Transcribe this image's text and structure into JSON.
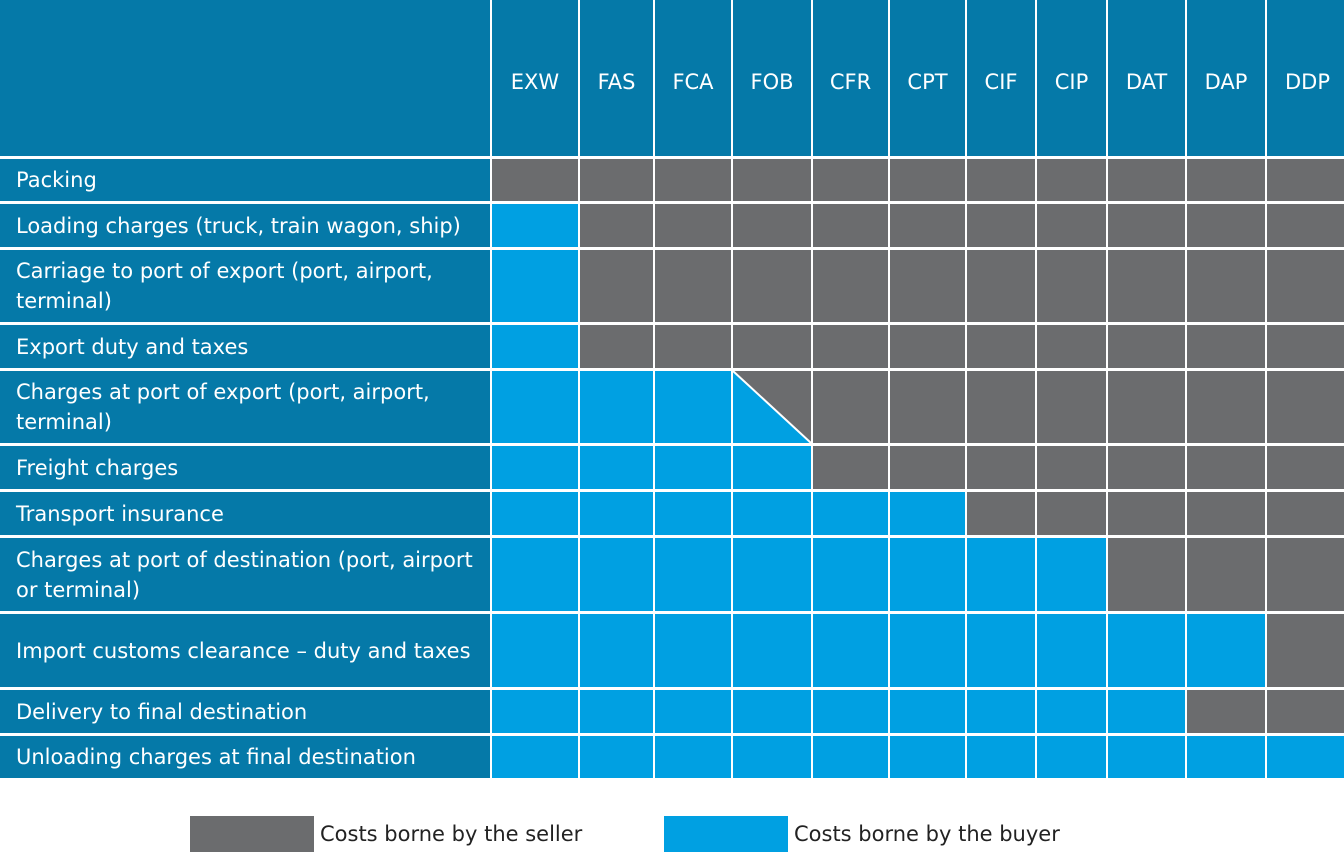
{
  "columns": [
    "EXW",
    "FAS",
    "FCA",
    "FOB",
    "CFR",
    "CPT",
    "CIF",
    "CIP",
    "DAT",
    "DAP",
    "DDP"
  ],
  "rows": [
    {
      "label": "Packing",
      "cells": [
        "seller",
        "seller",
        "seller",
        "seller",
        "seller",
        "seller",
        "seller",
        "seller",
        "seller",
        "seller",
        "seller"
      ]
    },
    {
      "label": "Loading charges (truck, train wagon, ship)",
      "cells": [
        "buyer",
        "seller",
        "seller",
        "seller",
        "seller",
        "seller",
        "seller",
        "seller",
        "seller",
        "seller",
        "seller"
      ]
    },
    {
      "label": "Carriage to port of export (port, airport, terminal)",
      "cells": [
        "buyer",
        "seller",
        "seller",
        "seller",
        "seller",
        "seller",
        "seller",
        "seller",
        "seller",
        "seller",
        "seller"
      ]
    },
    {
      "label": "Export duty and taxes",
      "cells": [
        "buyer",
        "seller",
        "seller",
        "seller",
        "seller",
        "seller",
        "seller",
        "seller",
        "seller",
        "seller",
        "seller"
      ]
    },
    {
      "label": "Charges at port of export (port, airport, terminal)",
      "cells": [
        "buyer",
        "buyer",
        "buyer",
        "split",
        "seller",
        "seller",
        "seller",
        "seller",
        "seller",
        "seller",
        "seller"
      ]
    },
    {
      "label": "Freight charges",
      "cells": [
        "buyer",
        "buyer",
        "buyer",
        "buyer",
        "seller",
        "seller",
        "seller",
        "seller",
        "seller",
        "seller",
        "seller"
      ]
    },
    {
      "label": "Transport insurance",
      "cells": [
        "buyer",
        "buyer",
        "buyer",
        "buyer",
        "buyer",
        "buyer",
        "seller",
        "seller",
        "seller",
        "seller",
        "seller"
      ]
    },
    {
      "label": "Charges at port of destination (port, airport or terminal)",
      "cells": [
        "buyer",
        "buyer",
        "buyer",
        "buyer",
        "buyer",
        "buyer",
        "buyer",
        "buyer",
        "seller",
        "seller",
        "seller"
      ]
    },
    {
      "label": "Import customs clearance – duty and taxes",
      "cells": [
        "buyer",
        "buyer",
        "buyer",
        "buyer",
        "buyer",
        "buyer",
        "buyer",
        "buyer",
        "buyer",
        "buyer",
        "seller"
      ]
    },
    {
      "label": "Delivery to final destination",
      "cells": [
        "buyer",
        "buyer",
        "buyer",
        "buyer",
        "buyer",
        "buyer",
        "buyer",
        "buyer",
        "buyer",
        "seller",
        "seller"
      ]
    },
    {
      "label": "Unloading charges at final destination",
      "cells": [
        "buyer",
        "buyer",
        "buyer",
        "buyer",
        "buyer",
        "buyer",
        "buyer",
        "buyer",
        "buyer",
        "buyer",
        "buyer"
      ]
    }
  ],
  "legend": {
    "seller_label": "Costs borne by the seller",
    "buyer_label": "Costs borne by the buyer"
  },
  "colors": {
    "header": "#0579a8",
    "seller": "#6b6c6e",
    "buyer": "#00a0e2"
  }
}
